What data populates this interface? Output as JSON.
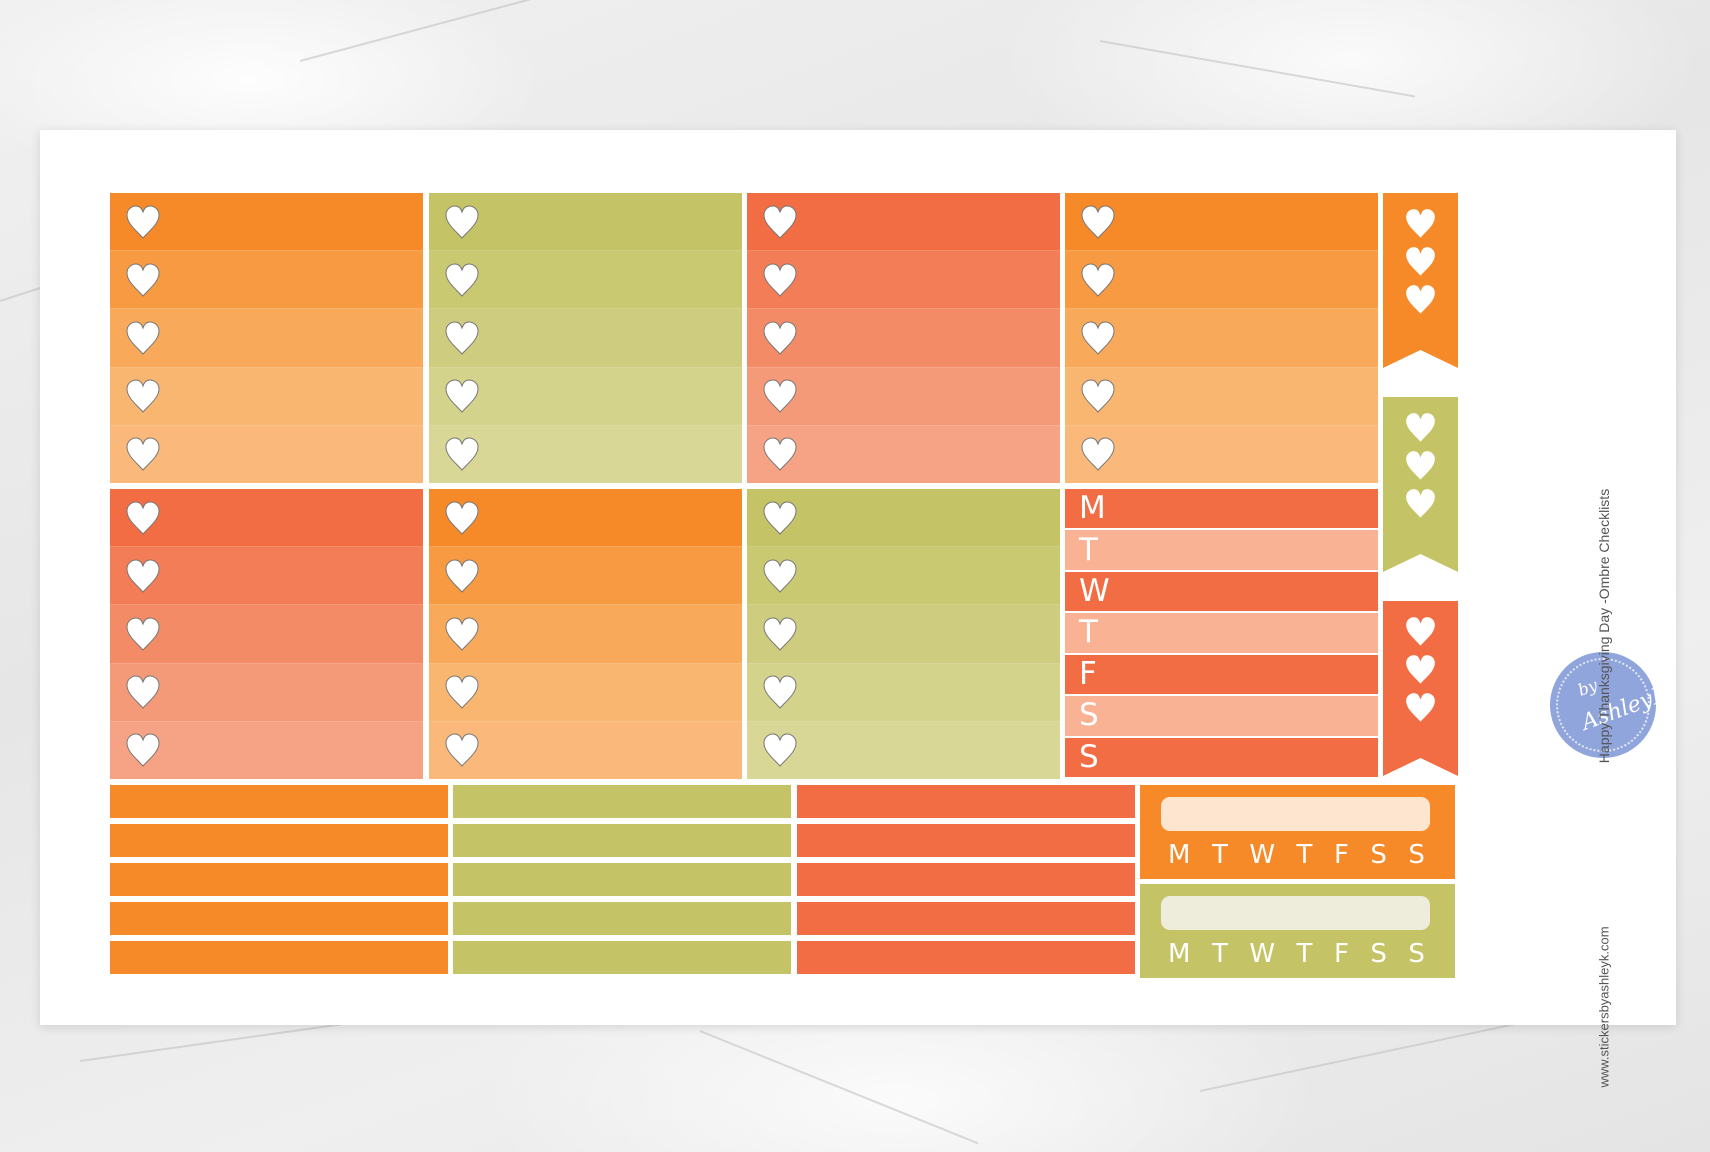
{
  "product": {
    "title": "Happy Thanksgiving Day -Ombre Checklists",
    "website": "www.stickersbyashleyk.com"
  },
  "logo": {
    "line1": "by",
    "line2": "AshleyK"
  },
  "colors": {
    "orange": "#f68a28",
    "green": "#c4c466",
    "red": "#f26d44",
    "orange_light": "#fde5d0",
    "green_light": "#eeecdb",
    "coral_light": "#f9b293",
    "heart_fill": "#ffffff",
    "heart_stroke": "#777777",
    "logo_blue": "#8fa5dc"
  },
  "checklist_boxes": [
    {
      "color": "orange",
      "rows": [
        "#f68a28",
        "#f79a42",
        "#f8a95a",
        "#f9b670",
        "#fab97b"
      ]
    },
    {
      "color": "green",
      "rows": [
        "#c4c466",
        "#c9c972",
        "#cecd7f",
        "#d3d38c",
        "#d8d796"
      ]
    },
    {
      "color": "red",
      "rows": [
        "#f26d44",
        "#f37d56",
        "#f48b67",
        "#f59a78",
        "#f6a385"
      ]
    },
    {
      "color": "orange",
      "rows": [
        "#f68a28",
        "#f79a42",
        "#f8a95a",
        "#f9b670",
        "#fab97b"
      ]
    },
    {
      "color": "red",
      "rows": [
        "#f26d44",
        "#f37d56",
        "#f48b67",
        "#f59a78",
        "#f6a385"
      ]
    },
    {
      "color": "orange",
      "rows": [
        "#f68a28",
        "#f79a42",
        "#f8a95a",
        "#f9b670",
        "#fab97b"
      ]
    },
    {
      "color": "green",
      "rows": [
        "#c4c466",
        "#c9c972",
        "#cecd7f",
        "#d3d38c",
        "#d8d796"
      ]
    }
  ],
  "week_box": {
    "days": [
      "M",
      "T",
      "W",
      "T",
      "F",
      "S",
      "S"
    ],
    "row_colors": [
      "#f26d44",
      "#f9b293",
      "#f26d44",
      "#f9b293",
      "#f26d44",
      "#f9b293",
      "#f26d44"
    ]
  },
  "flags": [
    {
      "color": "orange",
      "hearts": 3
    },
    {
      "color": "green",
      "hearts": 3
    },
    {
      "color": "red",
      "hearts": 3
    }
  ],
  "strip_columns": [
    {
      "color": "orange",
      "count": 5
    },
    {
      "color": "green",
      "count": 5
    },
    {
      "color": "red",
      "count": 5
    }
  ],
  "habit_trackers": [
    {
      "color": "orange",
      "bar_color": "orange_light",
      "days": [
        "M",
        "T",
        "W",
        "T",
        "F",
        "S",
        "S"
      ]
    },
    {
      "color": "green",
      "bar_color": "green_light",
      "days": [
        "M",
        "T",
        "W",
        "T",
        "F",
        "S",
        "S"
      ]
    }
  ]
}
